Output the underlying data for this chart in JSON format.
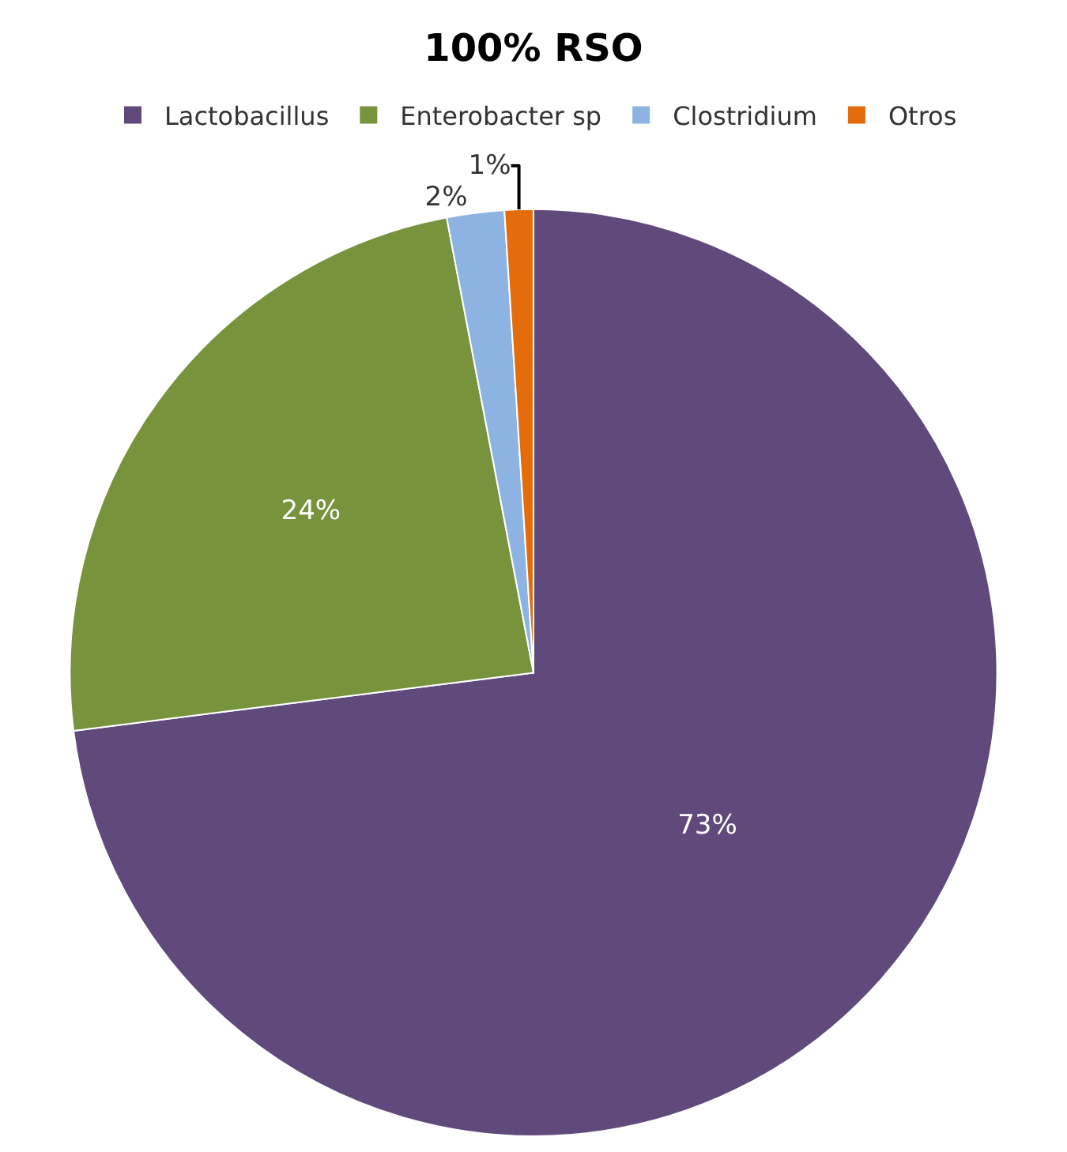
{
  "chart_data": {
    "type": "pie",
    "title": "100% RSO",
    "categories": [
      "Lactobacillus",
      "Enterobacter sp",
      "Clostridium",
      "Otros"
    ],
    "values": [
      73,
      24,
      2,
      1
    ],
    "colors": [
      "#604a7b",
      "#77933c",
      "#8db3e2",
      "#e46c0a"
    ],
    "value_labels": [
      "73%",
      "24%",
      "2%",
      "1%"
    ],
    "legend": "top"
  }
}
